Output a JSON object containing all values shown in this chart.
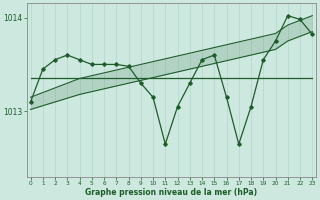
{
  "x": [
    0,
    1,
    2,
    3,
    4,
    5,
    6,
    7,
    8,
    9,
    10,
    11,
    12,
    13,
    14,
    15,
    16,
    17,
    18,
    19,
    20,
    21,
    22,
    23
  ],
  "pressure_main": [
    1013.1,
    1013.45,
    1013.55,
    1013.6,
    1013.55,
    1013.5,
    1013.5,
    1013.5,
    1013.48,
    1013.3,
    1013.15,
    1012.65,
    1013.05,
    1013.3,
    1013.55,
    1013.6,
    1013.15,
    1012.65,
    1013.05,
    1013.55,
    1013.75,
    1014.02,
    1013.98,
    1013.82
  ],
  "flat_line": [
    1013.35,
    1013.35,
    1013.35,
    1013.35,
    1013.35,
    1013.35,
    1013.35,
    1013.35,
    1013.35,
    1013.35,
    1013.35,
    1013.35,
    1013.35,
    1013.35,
    1013.35,
    1013.35,
    1013.35,
    1013.35,
    1013.35,
    1013.35,
    1013.35,
    1013.35,
    1013.35,
    1013.35
  ],
  "diag_upper": [
    1013.15,
    1013.2,
    1013.25,
    1013.3,
    1013.35,
    1013.38,
    1013.41,
    1013.44,
    1013.47,
    1013.5,
    1013.53,
    1013.56,
    1013.59,
    1013.62,
    1013.65,
    1013.68,
    1013.71,
    1013.74,
    1013.77,
    1013.8,
    1013.83,
    1013.92,
    1013.97,
    1014.02
  ],
  "diag_lower": [
    1013.02,
    1013.06,
    1013.1,
    1013.14,
    1013.18,
    1013.21,
    1013.24,
    1013.27,
    1013.3,
    1013.33,
    1013.36,
    1013.39,
    1013.42,
    1013.45,
    1013.48,
    1013.51,
    1013.54,
    1013.57,
    1013.6,
    1013.63,
    1013.66,
    1013.75,
    1013.8,
    1013.85
  ],
  "ylim": [
    1012.3,
    1014.15
  ],
  "ytick_positions": [
    1013.0,
    1014.0
  ],
  "ytick_labels": [
    "1013",
    "1014"
  ],
  "xticks": [
    0,
    1,
    2,
    3,
    4,
    5,
    6,
    7,
    8,
    9,
    10,
    11,
    12,
    13,
    14,
    15,
    16,
    17,
    18,
    19,
    20,
    21,
    22,
    23
  ],
  "xlabel": "Graphe pression niveau de la mer (hPa)",
  "bg_color": "#cce8df",
  "line_color": "#1e5c2a",
  "grid_color": "#b8d8d0",
  "spine_color": "#888888"
}
